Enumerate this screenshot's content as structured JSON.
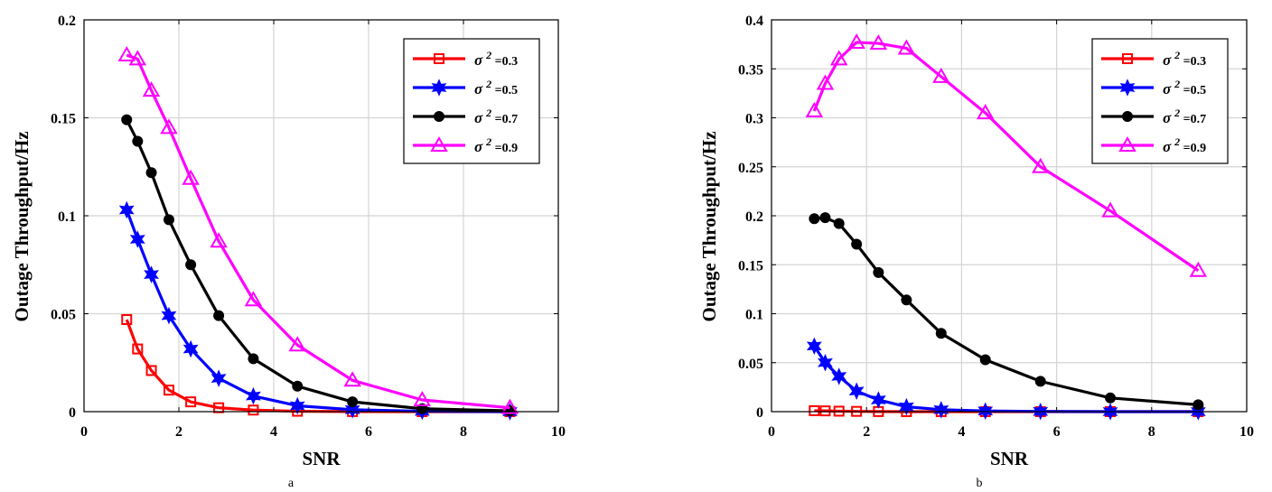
{
  "chart_data": [
    {
      "type": "line",
      "panel_label": "a",
      "xlabel": "SNR",
      "ylabel": "Outage Throughput/Hz",
      "xlim": [
        0,
        10
      ],
      "ylim": [
        0,
        0.2
      ],
      "xticks": [
        0,
        2,
        4,
        6,
        8,
        10
      ],
      "yticks": [
        0,
        0.05,
        0.1,
        0.15,
        0.2
      ],
      "xtick_labels": [
        "0",
        "2",
        "4",
        "6",
        "8",
        "10"
      ],
      "ytick_labels": [
        "0",
        "0.05",
        "0.1",
        "0.15",
        "0.2"
      ],
      "grid": true,
      "legend_position": "top-right",
      "x": [
        0.9,
        1.13,
        1.42,
        1.79,
        2.25,
        2.84,
        3.57,
        4.5,
        5.66,
        7.13,
        8.98
      ],
      "series": [
        {
          "name_prefix": "σ",
          "name_exp": "2",
          "name_suffix": " =0.3",
          "color": "#ff0000",
          "marker": "square",
          "values": [
            0.047,
            0.032,
            0.021,
            0.011,
            0.005,
            0.002,
            0.0008,
            0.0002,
            5e-05,
            0.0,
            0.0
          ]
        },
        {
          "name_prefix": "σ",
          "name_exp": "2",
          "name_suffix": " =0.5",
          "color": "#0000ff",
          "marker": "hexagram",
          "values": [
            0.103,
            0.088,
            0.07,
            0.049,
            0.032,
            0.017,
            0.008,
            0.003,
            0.001,
            0.0002,
            0.0
          ]
        },
        {
          "name_prefix": "σ",
          "name_exp": "2",
          "name_suffix": " =0.7",
          "color": "#000000",
          "marker": "circle",
          "values": [
            0.149,
            0.138,
            0.122,
            0.098,
            0.075,
            0.049,
            0.027,
            0.013,
            0.005,
            0.0015,
            0.0004
          ]
        },
        {
          "name_prefix": "σ",
          "name_exp": "2",
          "name_suffix": " =0.9",
          "color": "#ff00ff",
          "marker": "triangle",
          "values": [
            0.182,
            0.18,
            0.164,
            0.145,
            0.119,
            0.087,
            0.057,
            0.034,
            0.016,
            0.006,
            0.002
          ]
        }
      ]
    },
    {
      "type": "line",
      "panel_label": "b",
      "xlabel": "SNR",
      "ylabel": "Outage Throughput/Hz",
      "xlim": [
        0,
        10
      ],
      "ylim": [
        0,
        0.4
      ],
      "xticks": [
        0,
        2,
        4,
        6,
        8,
        10
      ],
      "yticks": [
        0,
        0.05,
        0.1,
        0.15,
        0.2,
        0.25,
        0.3,
        0.35,
        0.4
      ],
      "xtick_labels": [
        "0",
        "2",
        "4",
        "6",
        "8",
        "10"
      ],
      "ytick_labels": [
        "0",
        "0.05",
        "0.1",
        "0.15",
        "0.2",
        "0.25",
        "0.3",
        "0.35",
        "0.4"
      ],
      "grid": true,
      "legend_position": "top-right",
      "x": [
        0.9,
        1.13,
        1.42,
        1.79,
        2.25,
        2.84,
        3.57,
        4.5,
        5.66,
        7.13,
        8.98
      ],
      "series": [
        {
          "name_prefix": "σ",
          "name_exp": "2",
          "name_suffix": " =0.3",
          "color": "#ff0000",
          "marker": "square",
          "values": [
            0.001,
            0.0008,
            0.0005,
            0.0003,
            0.0001,
            0.0,
            0.0,
            0.0,
            0.0,
            0.0,
            0.0
          ]
        },
        {
          "name_prefix": "σ",
          "name_exp": "2",
          "name_suffix": " =0.5",
          "color": "#0000ff",
          "marker": "hexagram",
          "values": [
            0.067,
            0.05,
            0.036,
            0.021,
            0.012,
            0.005,
            0.002,
            0.0007,
            0.0002,
            0.0,
            0.0
          ]
        },
        {
          "name_prefix": "σ",
          "name_exp": "2",
          "name_suffix": " =0.7",
          "color": "#000000",
          "marker": "circle",
          "values": [
            0.197,
            0.198,
            0.192,
            0.171,
            0.142,
            0.114,
            0.08,
            0.053,
            0.031,
            0.014,
            0.007
          ]
        },
        {
          "name_prefix": "σ",
          "name_exp": "2",
          "name_suffix": " =0.9",
          "color": "#ff00ff",
          "marker": "triangle",
          "values": [
            0.307,
            0.335,
            0.36,
            0.377,
            0.376,
            0.371,
            0.342,
            0.305,
            0.25,
            0.205,
            0.144
          ]
        }
      ]
    }
  ]
}
